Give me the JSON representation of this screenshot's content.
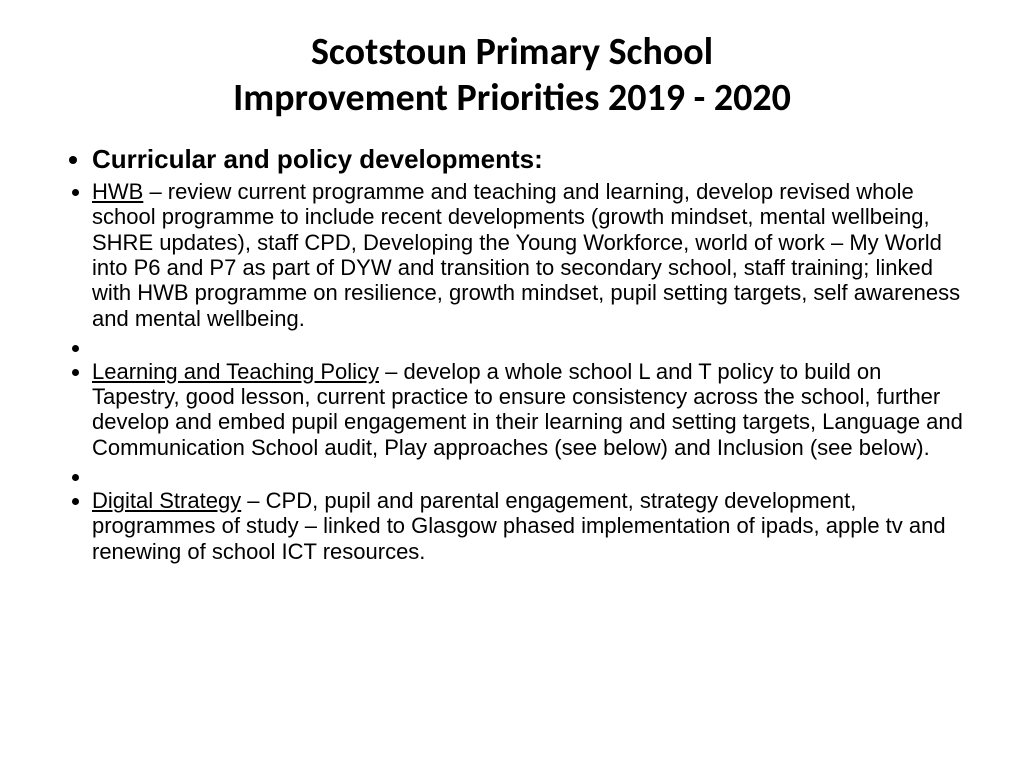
{
  "title_line1": "Scotstoun Primary School",
  "title_line2": "Improvement Priorities 2019 - 2020",
  "section_header": "Curricular and policy developments:",
  "items": {
    "hwb_label": "HWB",
    "hwb_text": " – review current programme and teaching and learning, develop revised whole school programme to include recent developments (growth mindset, mental wellbeing, SHRE updates), staff CPD, Developing the Young Workforce,  world of work – My World into P6 and P7 as part of DYW and transition to secondary school, staff training; linked with HWB programme on resilience, growth mindset, pupil setting targets, self awareness and mental wellbeing.",
    "learning_label": "Learning and Teaching Policy",
    "learning_text": " – develop a whole school L and T policy to build on Tapestry, good lesson, current practice to ensure consistency across the school, further develop and embed pupil engagement in their learning and setting targets, Language and Communication School audit, Play approaches (see below) and Inclusion (see below).",
    "digital_label": "Digital Strategy",
    "digital_text": " – CPD, pupil and parental engagement, strategy development, programmes of study – linked to Glasgow phased implementation of ipads, apple tv and renewing of school ICT resources."
  },
  "colors": {
    "background": "#ffffff",
    "text": "#000000"
  },
  "typography": {
    "title_font": "Calibri",
    "title_size": 38,
    "title_weight": "bold",
    "body_font": "Comic Sans MS",
    "body_size": 22,
    "header_size": 26
  }
}
